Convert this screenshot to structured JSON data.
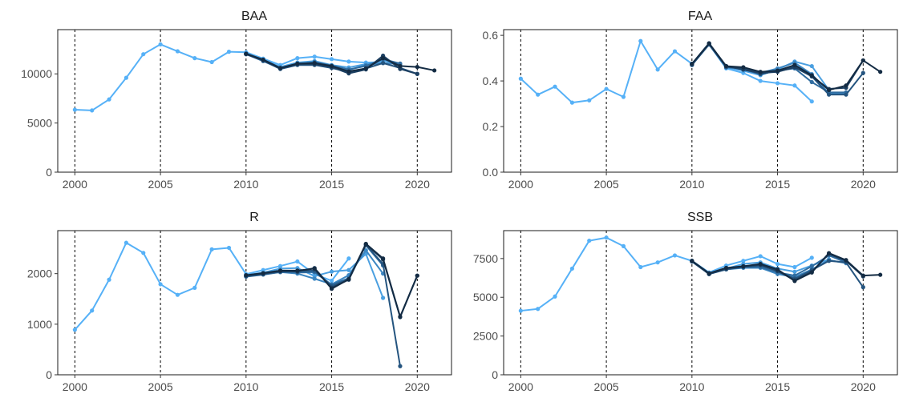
{
  "chart_data": [
    {
      "type": "line",
      "title": "BAA",
      "xlabel": "",
      "ylabel": "",
      "xlim": [
        1999,
        2022
      ],
      "ylim": [
        0,
        14500
      ],
      "x_ticks": [
        2000,
        2005,
        2010,
        2015,
        2020
      ],
      "y_ticks": [
        0,
        5000,
        10000
      ],
      "vlines": [
        2000,
        2005,
        2010,
        2015,
        2020
      ],
      "grid": false,
      "series": [
        {
          "color": "#56B1F7",
          "x": [
            2000,
            2001,
            2002,
            2003,
            2004,
            2005,
            2006,
            2007,
            2008,
            2009,
            2010,
            2011,
            2012,
            2013,
            2014,
            2015,
            2016,
            2017,
            2018
          ],
          "y": [
            6350,
            6280,
            7400,
            9600,
            12000,
            13000,
            12300,
            11600,
            11200,
            12250,
            12200,
            11550,
            10900,
            11600,
            11750,
            11500,
            11250,
            11150,
            11200
          ]
        },
        {
          "color": "#4A9FE0",
          "x": [
            2010,
            2011,
            2012,
            2013,
            2014,
            2015,
            2016,
            2017,
            2018,
            2019
          ],
          "y": [
            12100,
            11450,
            10700,
            11150,
            11300,
            10900,
            10650,
            11000,
            11350,
            10950
          ]
        },
        {
          "color": "#3B86C2",
          "x": [
            2010,
            2011,
            2012,
            2013,
            2014,
            2015,
            2016,
            2017,
            2018,
            2019
          ],
          "y": [
            12050,
            11400,
            10600,
            11000,
            11000,
            10700,
            10400,
            10900,
            11100,
            11000
          ]
        },
        {
          "color": "#2F6CA0",
          "x": [
            2010,
            2011,
            2012,
            2013,
            2014,
            2015,
            2016,
            2017,
            2018,
            2019
          ],
          "y": [
            12000,
            11300,
            10550,
            10950,
            11200,
            10850,
            10450,
            10800,
            11500,
            11050
          ]
        },
        {
          "color": "#24547F",
          "x": [
            2010,
            2011,
            2012,
            2013,
            2014,
            2015,
            2016,
            2017,
            2018,
            2019,
            2020
          ],
          "y": [
            12050,
            11350,
            10500,
            10900,
            10900,
            10600,
            10200,
            10550,
            11100,
            10600,
            10000
          ]
        },
        {
          "color": "#1C3F61",
          "x": [
            2010,
            2011,
            2012,
            2013,
            2014,
            2015,
            2016,
            2017,
            2018,
            2019,
            2020
          ],
          "y": [
            12000,
            11400,
            10550,
            11000,
            11000,
            10700,
            10050,
            10450,
            11850,
            10500,
            10000
          ]
        },
        {
          "color": "#132B43",
          "x": [
            2010,
            2011,
            2012,
            2013,
            2014,
            2015,
            2016,
            2017,
            2018,
            2019,
            2020,
            2021
          ],
          "y": [
            12050,
            11450,
            10600,
            11050,
            11100,
            10800,
            10250,
            10550,
            11600,
            10800,
            10700,
            10350
          ]
        }
      ]
    },
    {
      "type": "line",
      "title": "FAA",
      "xlabel": "",
      "ylabel": "",
      "xlim": [
        1999,
        2022
      ],
      "ylim": [
        0,
        0.625
      ],
      "x_ticks": [
        2000,
        2005,
        2010,
        2015,
        2020
      ],
      "y_ticks": [
        "0.0",
        "0.2",
        "0.4",
        "0.6"
      ],
      "vlines": [
        2000,
        2005,
        2010,
        2015,
        2020
      ],
      "grid": false,
      "series": [
        {
          "color": "#56B1F7",
          "x": [
            2000,
            2001,
            2002,
            2003,
            2004,
            2005,
            2006,
            2007,
            2008,
            2009,
            2010,
            2011,
            2012,
            2013,
            2014,
            2015,
            2016,
            2017
          ],
          "y": [
            0.41,
            0.34,
            0.375,
            0.305,
            0.315,
            0.365,
            0.33,
            0.575,
            0.45,
            0.53,
            0.475,
            0.56,
            0.455,
            0.435,
            0.4,
            0.39,
            0.38,
            0.31
          ]
        },
        {
          "color": "#4A9FE0",
          "x": [
            2010,
            2011,
            2012,
            2013,
            2014,
            2015,
            2016,
            2017,
            2018
          ],
          "y": [
            0.475,
            0.56,
            0.46,
            0.445,
            0.425,
            0.45,
            0.485,
            0.465,
            0.36
          ]
        },
        {
          "color": "#3B86C2",
          "x": [
            2010,
            2011,
            2012,
            2013,
            2014,
            2015,
            2016,
            2017,
            2018,
            2019
          ],
          "y": [
            0.475,
            0.565,
            0.46,
            0.455,
            0.435,
            0.455,
            0.48,
            0.43,
            0.345,
            0.345
          ]
        },
        {
          "color": "#2F6CA0",
          "x": [
            2010,
            2011,
            2012,
            2013,
            2014,
            2015,
            2016,
            2017,
            2018,
            2019
          ],
          "y": [
            0.47,
            0.56,
            0.465,
            0.45,
            0.43,
            0.445,
            0.455,
            0.395,
            0.35,
            0.35
          ]
        },
        {
          "color": "#24547F",
          "x": [
            2010,
            2011,
            2012,
            2013,
            2014,
            2015,
            2016,
            2017,
            2018,
            2019,
            2020
          ],
          "y": [
            0.47,
            0.56,
            0.46,
            0.455,
            0.43,
            0.445,
            0.465,
            0.42,
            0.34,
            0.34,
            0.435
          ]
        },
        {
          "color": "#1C3F61",
          "x": [
            2010,
            2011,
            2012,
            2013,
            2014,
            2015,
            2016,
            2017,
            2018,
            2019,
            2020
          ],
          "y": [
            0.475,
            0.565,
            0.465,
            0.45,
            0.435,
            0.44,
            0.46,
            0.42,
            0.365,
            0.37,
            0.49
          ]
        },
        {
          "color": "#132B43",
          "x": [
            2010,
            2011,
            2012,
            2013,
            2014,
            2015,
            2016,
            2017,
            2018,
            2019,
            2020,
            2021
          ],
          "y": [
            0.475,
            0.565,
            0.465,
            0.46,
            0.44,
            0.445,
            0.47,
            0.425,
            0.36,
            0.38,
            0.49,
            0.44
          ]
        }
      ]
    },
    {
      "type": "line",
      "title": "R",
      "xlabel": "",
      "ylabel": "",
      "xlim": [
        1999,
        2022
      ],
      "ylim": [
        0,
        2850
      ],
      "x_ticks": [
        2000,
        2005,
        2010,
        2015,
        2020
      ],
      "y_ticks": [
        0,
        1000,
        2000
      ],
      "vlines": [
        2000,
        2005,
        2010,
        2015,
        2020
      ],
      "grid": false,
      "series": [
        {
          "color": "#56B1F7",
          "x": [
            2000,
            2001,
            2002,
            2003,
            2004,
            2005,
            2006,
            2007,
            2008,
            2009,
            2010,
            2011,
            2012,
            2013,
            2014,
            2015,
            2016
          ],
          "y": [
            890,
            1270,
            1880,
            2610,
            2410,
            1790,
            1580,
            1720,
            2480,
            2510,
            1990,
            2070,
            2150,
            2240,
            1990,
            1860,
            2300
          ]
        },
        {
          "color": "#4A9FE0",
          "x": [
            2010,
            2011,
            2012,
            2013,
            2014,
            2015,
            2016,
            2017,
            2018
          ],
          "y": [
            1970,
            2020,
            2100,
            2110,
            1950,
            2040,
            2070,
            2390,
            1520
          ]
        },
        {
          "color": "#3B86C2",
          "x": [
            2010,
            2011,
            2012,
            2013,
            2014,
            2015,
            2016,
            2017,
            2018
          ],
          "y": [
            1950,
            1990,
            2030,
            2000,
            1900,
            1790,
            1970,
            2460,
            2000
          ]
        },
        {
          "color": "#2F6CA0",
          "x": [
            2010,
            2011,
            2012,
            2013,
            2014,
            2015,
            2016,
            2017,
            2018
          ],
          "y": [
            1940,
            1980,
            2030,
            2020,
            2030,
            1780,
            1910,
            2560,
            2160
          ]
        },
        {
          "color": "#24547F",
          "x": [
            2010,
            2011,
            2012,
            2013,
            2014,
            2015,
            2016,
            2017,
            2018,
            2019
          ],
          "y": [
            1950,
            1990,
            2040,
            2050,
            2060,
            1750,
            1890,
            2570,
            2190,
            170
          ]
        },
        {
          "color": "#1C3F61",
          "x": [
            2010,
            2011,
            2012,
            2013,
            2014,
            2015,
            2016,
            2017,
            2018,
            2019,
            2020
          ],
          "y": [
            1960,
            2000,
            2050,
            2040,
            2110,
            1720,
            1880,
            2580,
            2280,
            1140,
            1960
          ]
        },
        {
          "color": "#132B43",
          "x": [
            2010,
            2011,
            2012,
            2013,
            2014,
            2015,
            2016,
            2017,
            2018,
            2019,
            2020
          ],
          "y": [
            1970,
            2010,
            2060,
            2060,
            2100,
            1700,
            1890,
            2590,
            2300,
            1150,
            1960
          ]
        }
      ]
    },
    {
      "type": "line",
      "title": "SSB",
      "xlabel": "",
      "ylabel": "",
      "xlim": [
        1999,
        2022
      ],
      "ylim": [
        0,
        9300
      ],
      "x_ticks": [
        2000,
        2005,
        2010,
        2015,
        2020
      ],
      "y_ticks": [
        0,
        2500,
        5000,
        7500
      ],
      "vlines": [
        2000,
        2005,
        2010,
        2015,
        2020
      ],
      "grid": false,
      "series": [
        {
          "color": "#56B1F7",
          "x": [
            2000,
            2001,
            2002,
            2003,
            2004,
            2005,
            2006,
            2007,
            2008,
            2009,
            2010,
            2011,
            2012,
            2013,
            2014,
            2015,
            2016,
            2017
          ],
          "y": [
            4130,
            4250,
            5050,
            6850,
            8650,
            8850,
            8300,
            6950,
            7250,
            7700,
            7350,
            6600,
            7050,
            7350,
            7650,
            7150,
            6950,
            7550
          ]
        },
        {
          "color": "#4A9FE0",
          "x": [
            2010,
            2011,
            2012,
            2013,
            2014,
            2015,
            2016,
            2017,
            2018
          ],
          "y": [
            7350,
            6550,
            6850,
            7150,
            7250,
            6850,
            6650,
            7050,
            7450
          ]
        },
        {
          "color": "#3B86C2",
          "x": [
            2010,
            2011,
            2012,
            2013,
            2014,
            2015,
            2016,
            2017,
            2018,
            2019
          ],
          "y": [
            7350,
            6500,
            6800,
            6900,
            6900,
            6500,
            6300,
            6800,
            7400,
            7200
          ]
        },
        {
          "color": "#2F6CA0",
          "x": [
            2010,
            2011,
            2012,
            2013,
            2014,
            2015,
            2016,
            2017,
            2018,
            2019
          ],
          "y": [
            7350,
            6500,
            6850,
            6950,
            6950,
            6600,
            6400,
            7000,
            7700,
            7250
          ]
        },
        {
          "color": "#24547F",
          "x": [
            2010,
            2011,
            2012,
            2013,
            2014,
            2015,
            2016,
            2017,
            2018,
            2019,
            2020
          ],
          "y": [
            7300,
            6500,
            6800,
            6950,
            7050,
            6700,
            6200,
            6750,
            7350,
            7250,
            5650
          ]
        },
        {
          "color": "#1C3F61",
          "x": [
            2010,
            2011,
            2012,
            2013,
            2014,
            2015,
            2016,
            2017,
            2018,
            2019,
            2020
          ],
          "y": [
            7350,
            6500,
            6850,
            7000,
            7100,
            6700,
            6100,
            6650,
            7800,
            7350,
            6350
          ]
        },
        {
          "color": "#132B43",
          "x": [
            2010,
            2011,
            2012,
            2013,
            2014,
            2015,
            2016,
            2017,
            2018,
            2019,
            2020,
            2021
          ],
          "y": [
            7350,
            6550,
            6900,
            7000,
            7150,
            6800,
            6050,
            6600,
            7850,
            7400,
            6400,
            6450
          ]
        }
      ]
    }
  ]
}
